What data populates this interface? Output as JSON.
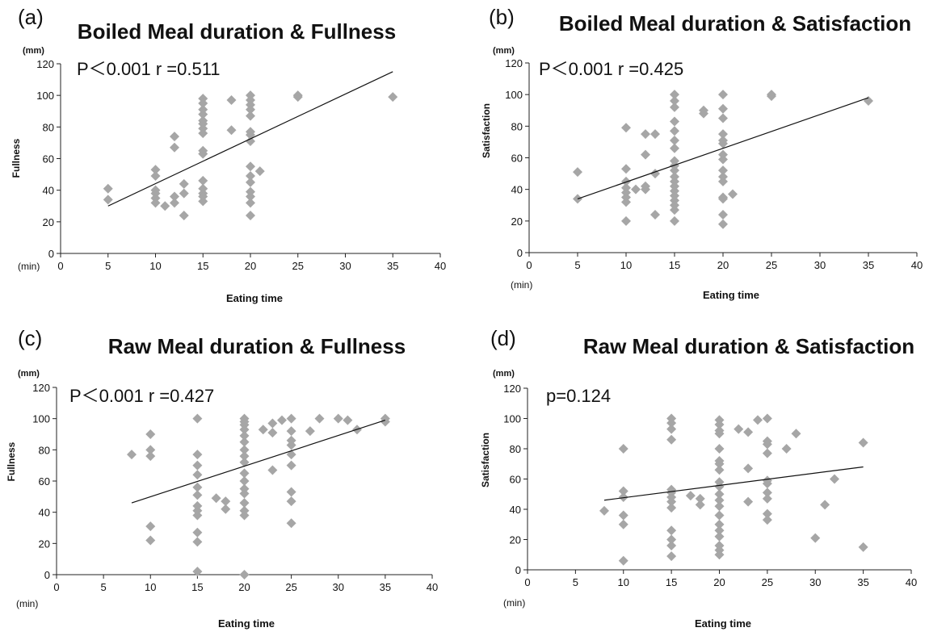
{
  "chart_data": [
    {
      "type": "scatter",
      "panel_label": "(a)",
      "title": "Boiled Meal duration & Fullness",
      "stat_text": "P＜0.001  r =0.511",
      "xlabel": "Eating time",
      "x_unit": "(min)",
      "ylabel": "Fullness",
      "y_unit": "(mm)",
      "xlim": [
        0,
        40
      ],
      "ylim": [
        0,
        120
      ],
      "xticks": [
        0,
        5,
        10,
        15,
        20,
        25,
        30,
        35,
        40
      ],
      "yticks": [
        0,
        20,
        40,
        60,
        80,
        100,
        120
      ],
      "trendline": [
        [
          5,
          30
        ],
        [
          35,
          115
        ]
      ],
      "marker_color": "#a6a6a6",
      "points": [
        [
          5,
          41
        ],
        [
          5,
          34
        ],
        [
          10,
          53
        ],
        [
          10,
          49
        ],
        [
          10,
          40
        ],
        [
          10,
          38
        ],
        [
          10,
          35
        ],
        [
          10,
          32
        ],
        [
          11,
          30
        ],
        [
          12,
          74
        ],
        [
          12,
          67
        ],
        [
          12,
          36
        ],
        [
          12,
          32
        ],
        [
          13,
          44
        ],
        [
          13,
          38
        ],
        [
          13,
          24
        ],
        [
          15,
          98
        ],
        [
          15,
          95
        ],
        [
          15,
          91
        ],
        [
          15,
          88
        ],
        [
          15,
          84
        ],
        [
          15,
          82
        ],
        [
          15,
          79
        ],
        [
          15,
          76
        ],
        [
          15,
          65
        ],
        [
          15,
          63
        ],
        [
          15,
          46
        ],
        [
          15,
          41
        ],
        [
          15,
          38
        ],
        [
          15,
          36
        ],
        [
          15,
          33
        ],
        [
          18,
          97
        ],
        [
          18,
          78
        ],
        [
          20,
          100
        ],
        [
          20,
          97
        ],
        [
          20,
          94
        ],
        [
          20,
          91
        ],
        [
          20,
          87
        ],
        [
          20,
          77
        ],
        [
          20,
          75
        ],
        [
          20,
          71
        ],
        [
          20,
          55
        ],
        [
          20,
          49
        ],
        [
          20,
          45
        ],
        [
          20,
          39
        ],
        [
          20,
          36
        ],
        [
          20,
          32
        ],
        [
          20,
          24
        ],
        [
          21,
          52
        ],
        [
          25,
          100
        ],
        [
          25,
          99
        ],
        [
          35,
          99
        ]
      ]
    },
    {
      "type": "scatter",
      "panel_label": "(b)",
      "title": "Boiled Meal duration & Satisfaction",
      "stat_text": "P＜0.001  r =0.425",
      "xlabel": "Eating time",
      "x_unit": "(min)",
      "ylabel": "Satisfaction",
      "y_unit": "(mm)",
      "xlim": [
        0,
        40
      ],
      "ylim": [
        0,
        120
      ],
      "xticks": [
        0,
        5,
        10,
        15,
        20,
        25,
        30,
        35,
        40
      ],
      "yticks": [
        0,
        20,
        40,
        60,
        80,
        100,
        120
      ],
      "trendline": [
        [
          5,
          34
        ],
        [
          35,
          98
        ]
      ],
      "marker_color": "#a6a6a6",
      "points": [
        [
          5,
          51
        ],
        [
          5,
          34
        ],
        [
          10,
          79
        ],
        [
          10,
          53
        ],
        [
          10,
          45
        ],
        [
          10,
          41
        ],
        [
          10,
          38
        ],
        [
          10,
          35
        ],
        [
          10,
          32
        ],
        [
          10,
          20
        ],
        [
          11,
          40
        ],
        [
          12,
          75
        ],
        [
          12,
          62
        ],
        [
          12,
          42
        ],
        [
          12,
          40
        ],
        [
          13,
          75
        ],
        [
          13,
          50
        ],
        [
          13,
          24
        ],
        [
          15,
          100
        ],
        [
          15,
          96
        ],
        [
          15,
          92
        ],
        [
          15,
          83
        ],
        [
          15,
          77
        ],
        [
          15,
          71
        ],
        [
          15,
          66
        ],
        [
          15,
          58
        ],
        [
          15,
          55
        ],
        [
          15,
          52
        ],
        [
          15,
          48
        ],
        [
          15,
          45
        ],
        [
          15,
          42
        ],
        [
          15,
          39
        ],
        [
          15,
          36
        ],
        [
          15,
          33
        ],
        [
          15,
          30
        ],
        [
          15,
          27
        ],
        [
          15,
          20
        ],
        [
          18,
          90
        ],
        [
          18,
          88
        ],
        [
          20,
          100
        ],
        [
          20,
          91
        ],
        [
          20,
          85
        ],
        [
          20,
          75
        ],
        [
          20,
          71
        ],
        [
          20,
          69
        ],
        [
          20,
          62
        ],
        [
          20,
          59
        ],
        [
          20,
          52
        ],
        [
          20,
          48
        ],
        [
          20,
          45
        ],
        [
          20,
          35
        ],
        [
          20,
          34
        ],
        [
          20,
          24
        ],
        [
          20,
          18
        ],
        [
          21,
          37
        ],
        [
          25,
          100
        ],
        [
          25,
          99
        ],
        [
          35,
          96
        ]
      ]
    },
    {
      "type": "scatter",
      "panel_label": "(c)",
      "title": "Raw Meal duration & Fullness",
      "stat_text": "P＜0.001  r =0.427",
      "xlabel": "Eating time",
      "x_unit": "(min)",
      "ylabel": "Fullness",
      "y_unit": "(mm)",
      "xlim": [
        0,
        40
      ],
      "ylim": [
        0,
        120
      ],
      "xticks": [
        0,
        5,
        10,
        15,
        20,
        25,
        30,
        35,
        40
      ],
      "yticks": [
        0,
        20,
        40,
        60,
        80,
        100,
        120
      ],
      "trendline": [
        [
          8,
          46
        ],
        [
          35,
          99
        ]
      ],
      "marker_color": "#a6a6a6",
      "points": [
        [
          8,
          77
        ],
        [
          10,
          90
        ],
        [
          10,
          80
        ],
        [
          10,
          76
        ],
        [
          10,
          31
        ],
        [
          10,
          22
        ],
        [
          15,
          100
        ],
        [
          15,
          77
        ],
        [
          15,
          70
        ],
        [
          15,
          64
        ],
        [
          15,
          56
        ],
        [
          15,
          51
        ],
        [
          15,
          44
        ],
        [
          15,
          41
        ],
        [
          15,
          38
        ],
        [
          15,
          27
        ],
        [
          15,
          21
        ],
        [
          15,
          2
        ],
        [
          17,
          49
        ],
        [
          18,
          47
        ],
        [
          18,
          42
        ],
        [
          20,
          100
        ],
        [
          20,
          98
        ],
        [
          20,
          96
        ],
        [
          20,
          93
        ],
        [
          20,
          89
        ],
        [
          20,
          85
        ],
        [
          20,
          80
        ],
        [
          20,
          76
        ],
        [
          20,
          72
        ],
        [
          20,
          65
        ],
        [
          20,
          60
        ],
        [
          20,
          55
        ],
        [
          20,
          52
        ],
        [
          20,
          46
        ],
        [
          20,
          41
        ],
        [
          20,
          38
        ],
        [
          20,
          0
        ],
        [
          22,
          93
        ],
        [
          23,
          97
        ],
        [
          23,
          91
        ],
        [
          23,
          67
        ],
        [
          24,
          99
        ],
        [
          25,
          100
        ],
        [
          25,
          92
        ],
        [
          25,
          86
        ],
        [
          25,
          83
        ],
        [
          25,
          77
        ],
        [
          25,
          70
        ],
        [
          25,
          53
        ],
        [
          25,
          47
        ],
        [
          25,
          33
        ],
        [
          27,
          92
        ],
        [
          28,
          100
        ],
        [
          30,
          100
        ],
        [
          31,
          99
        ],
        [
          32,
          93
        ],
        [
          35,
          100
        ],
        [
          35,
          98
        ]
      ]
    },
    {
      "type": "scatter",
      "panel_label": "(d)",
      "title": "Raw Meal duration & Satisfaction",
      "stat_text": "p=0.124",
      "xlabel": "Eating time",
      "x_unit": "(min)",
      "ylabel": "Satisfaction",
      "y_unit": "(mm)",
      "xlim": [
        0,
        40
      ],
      "ylim": [
        0,
        120
      ],
      "xticks": [
        0,
        5,
        10,
        15,
        20,
        25,
        30,
        35,
        40
      ],
      "yticks": [
        0,
        20,
        40,
        60,
        80,
        100,
        120
      ],
      "trendline": [
        [
          8,
          46
        ],
        [
          35,
          68
        ]
      ],
      "marker_color": "#a6a6a6",
      "points": [
        [
          8,
          39
        ],
        [
          10,
          80
        ],
        [
          10,
          52
        ],
        [
          10,
          48
        ],
        [
          10,
          36
        ],
        [
          10,
          30
        ],
        [
          10,
          6
        ],
        [
          15,
          100
        ],
        [
          15,
          97
        ],
        [
          15,
          93
        ],
        [
          15,
          86
        ],
        [
          15,
          53
        ],
        [
          15,
          51
        ],
        [
          15,
          48
        ],
        [
          15,
          45
        ],
        [
          15,
          41
        ],
        [
          15,
          26
        ],
        [
          15,
          20
        ],
        [
          15,
          16
        ],
        [
          15,
          9
        ],
        [
          17,
          49
        ],
        [
          18,
          47
        ],
        [
          18,
          43
        ],
        [
          20,
          99
        ],
        [
          20,
          96
        ],
        [
          20,
          92
        ],
        [
          20,
          90
        ],
        [
          20,
          80
        ],
        [
          20,
          72
        ],
        [
          20,
          70
        ],
        [
          20,
          66
        ],
        [
          20,
          58
        ],
        [
          20,
          55
        ],
        [
          20,
          50
        ],
        [
          20,
          46
        ],
        [
          20,
          42
        ],
        [
          20,
          36
        ],
        [
          20,
          30
        ],
        [
          20,
          26
        ],
        [
          20,
          22
        ],
        [
          20,
          16
        ],
        [
          20,
          13
        ],
        [
          20,
          10
        ],
        [
          22,
          93
        ],
        [
          23,
          91
        ],
        [
          23,
          67
        ],
        [
          23,
          45
        ],
        [
          24,
          99
        ],
        [
          25,
          100
        ],
        [
          25,
          85
        ],
        [
          25,
          83
        ],
        [
          25,
          77
        ],
        [
          25,
          59
        ],
        [
          25,
          57
        ],
        [
          25,
          51
        ],
        [
          25,
          47
        ],
        [
          25,
          37
        ],
        [
          25,
          33
        ],
        [
          27,
          80
        ],
        [
          28,
          90
        ],
        [
          30,
          21
        ],
        [
          31,
          43
        ],
        [
          32,
          60
        ],
        [
          35,
          84
        ],
        [
          35,
          15
        ]
      ]
    }
  ]
}
